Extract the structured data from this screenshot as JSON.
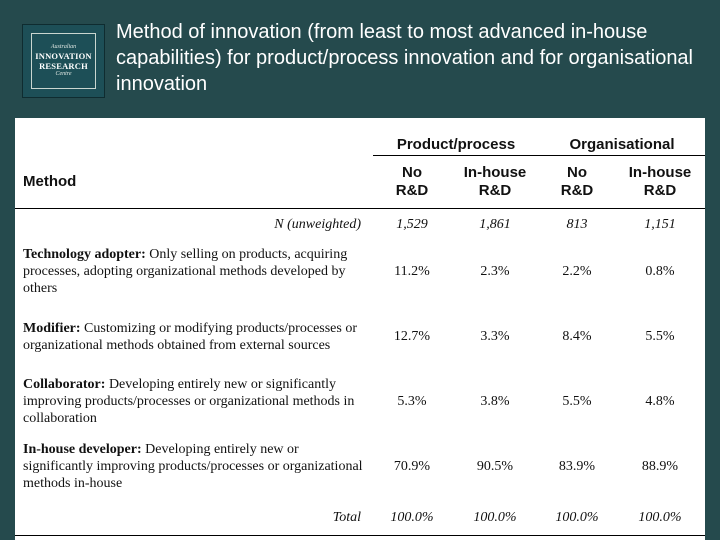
{
  "logo": {
    "line1": "Australian",
    "line2": "INNOVATION",
    "line3": "RESEARCH",
    "line4": "Centre"
  },
  "title": "Method of innovation (from least to most advanced in-house capabilities) for product/process innovation and for organisational innovation",
  "table": {
    "group_headers": [
      "Product/process",
      "Organisational"
    ],
    "method_header": "Method",
    "col_headers": [
      [
        "No",
        "R&D"
      ],
      [
        "In-house",
        "R&D"
      ],
      [
        "No",
        "R&D"
      ],
      [
        "In-house",
        "R&D"
      ]
    ],
    "n_label": "N (unweighted)",
    "n_values": [
      "1,529",
      "1,861",
      "813",
      "1,151"
    ],
    "rows": [
      {
        "name": "Technology adopter:",
        "desc": " Only selling on products, acquiring processes, adopting organizational methods developed by others",
        "values": [
          "11.2%",
          "2.3%",
          "2.2%",
          "0.8%"
        ]
      },
      {
        "name": "Modifier:",
        "desc": " Customizing or modifying products/processes or organizational methods obtained from external sources",
        "values": [
          "12.7%",
          "3.3%",
          "8.4%",
          "5.5%"
        ]
      },
      {
        "name": "Collaborator:",
        "desc": " Developing entirely new or significantly improving products/processes or organizational methods in collaboration",
        "values": [
          "5.3%",
          "3.8%",
          "5.5%",
          "4.8%"
        ]
      },
      {
        "name": "In-house developer:",
        "desc": " Developing entirely new or significantly improving products/processes or organizational methods in-house",
        "values": [
          "70.9%",
          "90.5%",
          "83.9%",
          "88.9%"
        ]
      }
    ],
    "total_label": "Total",
    "total_values": [
      "100.0%",
      "100.0%",
      "100.0%",
      "100.0%"
    ]
  }
}
